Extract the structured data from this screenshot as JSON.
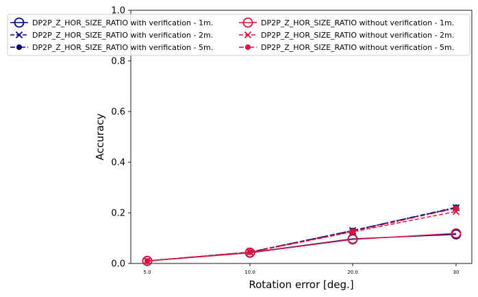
{
  "chart_data": {
    "type": "line",
    "xlabel": "Rotation error [deg.]",
    "ylabel": "Accuracy",
    "categories": [
      "5.0",
      "10.0",
      "20.0",
      "30"
    ],
    "ylim": [
      0,
      1.0
    ],
    "yticks": [
      "0.0",
      "0.2",
      "0.4",
      "0.6",
      "0.8",
      "1.0"
    ],
    "grid": false,
    "legend_position": "top, 2 columns",
    "series": [
      {
        "name": "DP2P_Z_HOR_SIZE_RATIO with verification - 1m.",
        "color": "#000080",
        "dash": "solid",
        "marker": "open-circle",
        "values": [
          0.01,
          0.043,
          0.097,
          0.115
        ]
      },
      {
        "name": "DP2P_Z_HOR_SIZE_RATIO with verification - 2m.",
        "color": "#000080",
        "dash": "dashed",
        "marker": "x",
        "values": [
          0.01,
          0.045,
          0.13,
          0.22
        ]
      },
      {
        "name": "DP2P_Z_HOR_SIZE_RATIO with verification - 5m.",
        "color": "#000080",
        "dash": "dashdot",
        "marker": "filled-circle",
        "values": [
          0.01,
          0.045,
          0.13,
          0.222
        ]
      },
      {
        "name": "DP2P_Z_HOR_SIZE_RATIO without verification - 1m.",
        "color": "#dc143c",
        "dash": "solid",
        "marker": "open-circle",
        "values": [
          0.01,
          0.042,
          0.095,
          0.119
        ]
      },
      {
        "name": "DP2P_Z_HOR_SIZE_RATIO without verification - 2m.",
        "color": "#dc143c",
        "dash": "dashed",
        "marker": "x",
        "values": [
          0.01,
          0.044,
          0.125,
          0.205
        ]
      },
      {
        "name": "DP2P_Z_HOR_SIZE_RATIO without verification - 5m.",
        "color": "#dc143c",
        "dash": "dashdot",
        "marker": "filled-circle",
        "values": [
          0.01,
          0.044,
          0.127,
          0.218
        ]
      }
    ]
  }
}
